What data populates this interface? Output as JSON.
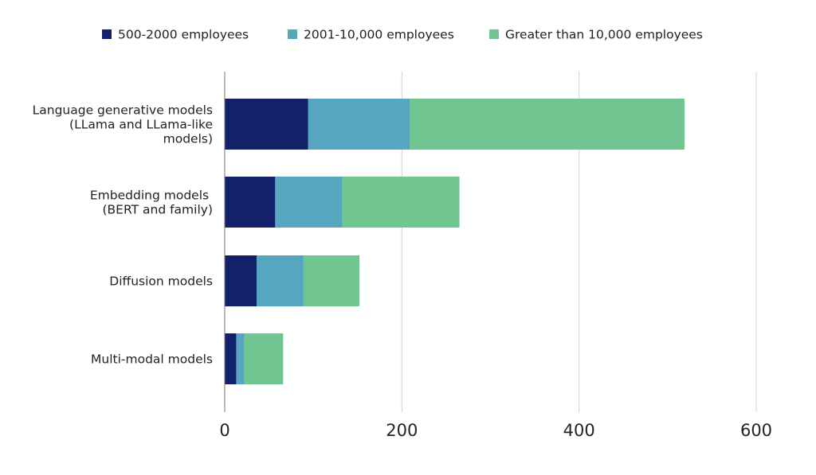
{
  "chart_data": {
    "type": "bar",
    "orientation": "horizontal",
    "stacked": true,
    "categories": [
      [
        "Language generative models",
        "(LLama and LLama-like",
        "models)"
      ],
      [
        "Embedding models ",
        "(BERT and family)"
      ],
      [
        "Diffusion models"
      ],
      [
        "Multi-modal models"
      ]
    ],
    "series": [
      {
        "name": "500-2000 employees",
        "color": "#13216b",
        "values": [
          94,
          57,
          36,
          13
        ]
      },
      {
        "name": "2001-10,000 employees",
        "color": "#57a6c1",
        "values": [
          115,
          76,
          53,
          9
        ]
      },
      {
        "name": "Greater than 10,000 employees",
        "color": "#71c591",
        "values": [
          310,
          132,
          63,
          44
        ]
      }
    ],
    "xlim": [
      0,
      600
    ],
    "xticks": [
      "0",
      "200",
      "400",
      "600"
    ],
    "xtick_values": [
      0,
      200,
      400,
      600
    ],
    "grid": "vertical",
    "legend_position": "top",
    "title": "",
    "xlabel": "",
    "ylabel": ""
  }
}
